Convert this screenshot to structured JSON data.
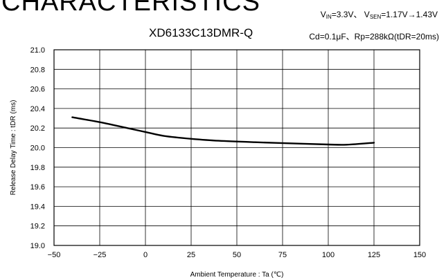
{
  "header": {
    "section": "CHARACTERISTICS",
    "condition_line1": {
      "vin_symbol": "V",
      "vin_sub": "IN",
      "vin_value": "=3.3V、",
      "vsen_symbol": "V",
      "vsen_sub": "SEN",
      "vsen_value": "=1.17V→1.43V"
    },
    "condition_line2": "Cd=0.1μF、Rp=288kΩ(tDR=20ms)"
  },
  "chart_data": {
    "type": "line",
    "title": "XD6133C13DMR-Q",
    "xlabel": "Ambient Temperature : Ta (℃)",
    "ylabel": "Release Delay Time : tDR (ms)",
    "xlim": [
      -50,
      150
    ],
    "ylim": [
      19.0,
      21.0
    ],
    "x_ticks": [
      "−50",
      "−25",
      "0",
      "25",
      "50",
      "75",
      "100",
      "125",
      "150"
    ],
    "y_ticks": [
      "19.0",
      "19.2",
      "19.4",
      "19.6",
      "19.8",
      "20.0",
      "20.2",
      "20.4",
      "20.6",
      "20.8",
      "21.0"
    ],
    "grid": true,
    "series": [
      {
        "x": [
          -40,
          -25,
          -10,
          0,
          10,
          25,
          40,
          60,
          85,
          100,
          110,
          125
        ],
        "y": [
          20.31,
          20.26,
          20.2,
          20.16,
          20.12,
          20.09,
          20.07,
          20.055,
          20.04,
          20.032,
          20.03,
          20.05
        ]
      }
    ]
  }
}
